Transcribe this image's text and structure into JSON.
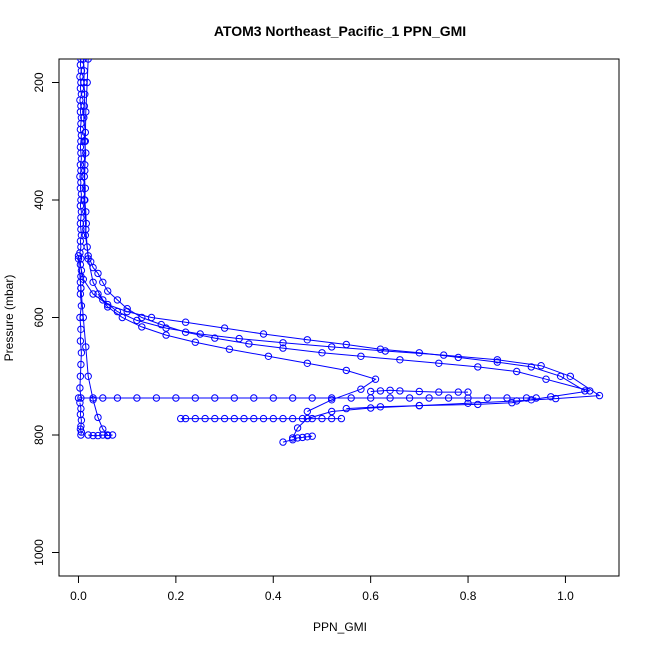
{
  "chart_data": {
    "type": "line",
    "title": "ATOM3 Northeast_Pacific_1 PPN_GMI",
    "xlabel": "PPN_GMI",
    "ylabel": "Pressure (mbar)",
    "xlim": [
      -0.04,
      1.11
    ],
    "ylim": [
      1040,
      160
    ],
    "y_inverted": true,
    "x_ticks": [
      0.0,
      0.2,
      0.4,
      0.6,
      0.8,
      1.0
    ],
    "y_ticks": [
      200,
      400,
      600,
      800,
      1000
    ],
    "x_tick_labels": [
      "0.0",
      "0.2",
      "0.4",
      "0.6",
      "0.8",
      "1.0"
    ],
    "y_tick_labels": [
      "200",
      "400",
      "600",
      "800",
      "1000"
    ],
    "marker": "open-circle",
    "color": "#0000ff",
    "series": [
      {
        "x": [
          0.005,
          0.004,
          0.006,
          0.003,
          0.005,
          0.004,
          0.006,
          0.003,
          0.005,
          0.004,
          0.006,
          0.005,
          0.004,
          0.006,
          0.005,
          0.004,
          0.005,
          0.006,
          0.004,
          0.005,
          0.003,
          0.005,
          0.004,
          0.006,
          0.005,
          0.004,
          0.006,
          0.005,
          0.004,
          0.005,
          0.006,
          0.004,
          0.005,
          0.003,
          0.005,
          0.004,
          0.006,
          0.005,
          0.004,
          0.005,
          0.004,
          0.006,
          0.003,
          0.005,
          0.004,
          0.006,
          0.005,
          0.004,
          0.003,
          0.005
        ],
        "y": [
          160,
          170,
          180,
          190,
          200,
          210,
          220,
          230,
          240,
          250,
          260,
          270,
          280,
          290,
          300,
          310,
          320,
          330,
          340,
          350,
          360,
          370,
          380,
          390,
          400,
          410,
          420,
          430,
          440,
          450,
          460,
          470,
          480,
          490,
          500,
          510,
          520,
          530,
          540,
          550,
          560,
          580,
          600,
          620,
          640,
          660,
          680,
          700,
          720,
          737
        ]
      },
      {
        "x": [
          0.01,
          0.012,
          0.011,
          0.013,
          0.012,
          0.011,
          0.014,
          0.012,
          0.015,
          0.013,
          0.012,
          0.014,
          0.013,
          0.015,
          0.016,
          0.014,
          0.018,
          0.02,
          0.025,
          0.03,
          0.04,
          0.05,
          0.06,
          0.08,
          0.1,
          0.13,
          0.17,
          0.22,
          0.28,
          0.35,
          0.42,
          0.5,
          0.58,
          0.66,
          0.74,
          0.82,
          0.9,
          0.96,
          1.05,
          0.97,
          0.93,
          0.89,
          0.82,
          0.7,
          0.62,
          0.55
        ],
        "y": [
          160,
          180,
          200,
          220,
          240,
          260,
          285,
          300,
          320,
          340,
          360,
          380,
          400,
          420,
          440,
          460,
          480,
          495,
          505,
          515,
          525,
          540,
          555,
          570,
          585,
          600,
          612,
          625,
          635,
          645,
          652,
          660,
          666,
          672,
          678,
          684,
          692,
          705,
          725,
          735,
          740,
          745,
          748,
          750,
          752,
          755
        ]
      },
      {
        "x": [
          0.02,
          0.018,
          0.015,
          0.014,
          0.013,
          0.012,
          0.015,
          0.02,
          0.03,
          0.05,
          0.08,
          0.12,
          0.18,
          0.25,
          0.33,
          0.42,
          0.52,
          0.63,
          0.75,
          0.86,
          0.95,
          1.01,
          1.07,
          0.98,
          0.9,
          0.8,
          0.7,
          0.6,
          0.52,
          0.47,
          0.45,
          0.44
        ],
        "y": [
          160,
          200,
          250,
          300,
          350,
          400,
          450,
          500,
          540,
          570,
          590,
          605,
          618,
          628,
          636,
          643,
          650,
          657,
          664,
          672,
          682,
          700,
          733,
          738,
          742,
          746,
          750,
          754,
          760,
          772,
          788,
          805
        ]
      },
      {
        "x": [
          0.0,
          0.01,
          0.03,
          0.06,
          0.1,
          0.15,
          0.22,
          0.3,
          0.38,
          0.47,
          0.55,
          0.62,
          0.7,
          0.78,
          0.86,
          0.93,
          0.99,
          1.04
        ],
        "y": [
          495,
          535,
          560,
          578,
          590,
          600,
          608,
          618,
          628,
          638,
          646,
          654,
          660,
          668,
          676,
          684,
          700,
          725
        ]
      },
      {
        "x": [
          0.04,
          0.06,
          0.09,
          0.13,
          0.18,
          0.24,
          0.31,
          0.39,
          0.47,
          0.55,
          0.61,
          0.58,
          0.52,
          0.47
        ],
        "y": [
          560,
          582,
          600,
          616,
          630,
          642,
          654,
          666,
          678,
          690,
          705,
          722,
          740,
          760
        ]
      },
      {
        "x": [
          0.0,
          0.005,
          0.01,
          0.015,
          0.02,
          0.03,
          0.04,
          0.05,
          0.06
        ],
        "y": [
          500,
          550,
          600,
          650,
          700,
          740,
          770,
          790,
          800
        ]
      },
      {
        "x": [
          0.0,
          0.03,
          0.05,
          0.08,
          0.12,
          0.16,
          0.2,
          0.24,
          0.28,
          0.32,
          0.36,
          0.4,
          0.44,
          0.48,
          0.52,
          0.56,
          0.6,
          0.64,
          0.68,
          0.72,
          0.76,
          0.8,
          0.84,
          0.88,
          0.92,
          0.94
        ],
        "y": [
          737,
          737,
          737,
          737,
          737,
          737,
          737,
          737,
          737,
          737,
          737,
          737,
          737,
          737,
          737,
          737,
          737,
          737,
          737,
          737,
          737,
          737,
          737,
          737,
          737,
          737
        ]
      },
      {
        "x": [
          0.21,
          0.22,
          0.24,
          0.26,
          0.28,
          0.3,
          0.32,
          0.34,
          0.36,
          0.38,
          0.4,
          0.42,
          0.44,
          0.46,
          0.48,
          0.5,
          0.52,
          0.54
        ],
        "y": [
          772,
          772,
          772,
          772,
          772,
          772,
          772,
          772,
          772,
          772,
          772,
          772,
          772,
          772,
          772,
          772,
          772,
          772
        ]
      },
      {
        "x": [
          0.6,
          0.62,
          0.64,
          0.66,
          0.7,
          0.74,
          0.78,
          0.8
        ],
        "y": [
          726,
          725,
          724,
          725,
          726,
          727,
          727,
          727
        ]
      },
      {
        "x": [
          0.02,
          0.03,
          0.04,
          0.05,
          0.06,
          0.07
        ],
        "y": [
          800,
          801,
          801,
          800,
          801,
          800
        ]
      },
      {
        "x": [
          0.42,
          0.44,
          0.45,
          0.46,
          0.47,
          0.48
        ],
        "y": [
          812,
          808,
          805,
          804,
          803,
          802
        ]
      },
      {
        "x": [
          0.003,
          0.005,
          0.004,
          0.006,
          0.005,
          0.004,
          0.006,
          0.005
        ],
        "y": [
          745,
          755,
          765,
          775,
          785,
          790,
          795,
          800
        ]
      }
    ]
  }
}
